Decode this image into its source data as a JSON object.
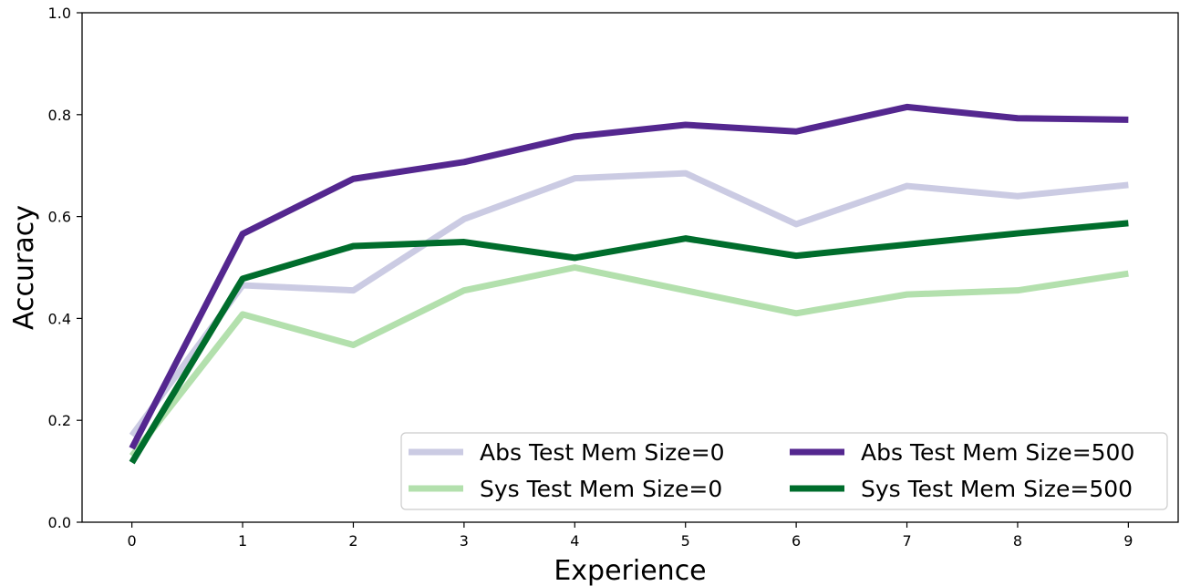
{
  "chart_data": {
    "type": "line",
    "title": "",
    "xlabel": "Experience",
    "ylabel": "Accuracy",
    "x": [
      0,
      1,
      2,
      3,
      4,
      5,
      6,
      7,
      8,
      9
    ],
    "x_ticks": [
      "0",
      "1",
      "2",
      "3",
      "4",
      "5",
      "6",
      "7",
      "8",
      "9"
    ],
    "y_ticks": [
      "0.0",
      "0.2",
      "0.4",
      "0.6",
      "0.8",
      "1.0"
    ],
    "xlim": [
      -0.45,
      9.45
    ],
    "ylim": [
      0.0,
      1.0
    ],
    "grid": false,
    "legend_position": "lower-right",
    "legend_columns": 2,
    "series": [
      {
        "name": "Abs Test Mem Size=0",
        "color": "#cbcbe3",
        "values": [
          0.17,
          0.465,
          0.455,
          0.595,
          0.675,
          0.685,
          0.585,
          0.66,
          0.64,
          0.662
        ]
      },
      {
        "name": "Sys Test Mem Size=0",
        "color": "#b3e0ad",
        "values": [
          0.13,
          0.408,
          0.348,
          0.455,
          0.5,
          0.455,
          0.41,
          0.447,
          0.455,
          0.488
        ]
      },
      {
        "name": "Abs Test Mem Size=500",
        "color": "#54278f",
        "values": [
          0.145,
          0.566,
          0.674,
          0.707,
          0.757,
          0.78,
          0.767,
          0.815,
          0.793,
          0.79
        ]
      },
      {
        "name": "Sys Test Mem Size=500",
        "color": "#006d2c",
        "values": [
          0.117,
          0.478,
          0.542,
          0.55,
          0.519,
          0.557,
          0.523,
          0.545,
          0.567,
          0.587
        ]
      }
    ]
  }
}
